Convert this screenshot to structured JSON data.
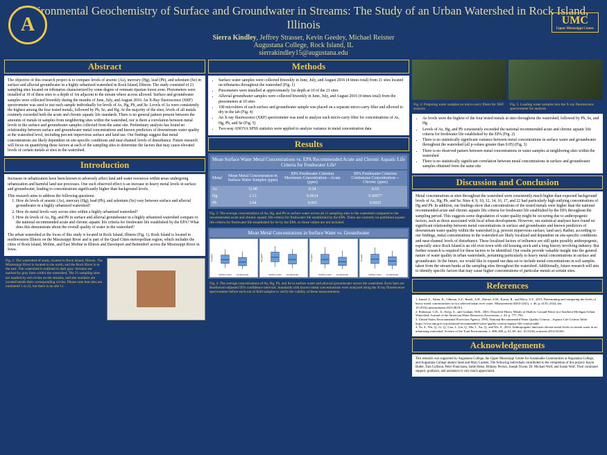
{
  "header": {
    "title": "Environmental Geochemistry of Surface and Groundwater in Streams:\nThe Study of an Urban Watershed in Rock Island, Illinois",
    "authors_lead": "Sierra Kindley",
    "authors_rest": ", Jeffrey Strasser, Kevin Geedey, Michael Reisner",
    "affiliation": "Augustana College, Rock Island, IL",
    "email": "sierrakindley15@augustana.edu",
    "logo_left_letter": "A",
    "logo_right": "UMC",
    "logo_right_sub": "Upper Mississippi Center"
  },
  "abstract": {
    "title": "Abstract",
    "body": "The objective of this research project is to compare levels of arsenic (As), mercury (Hg), lead (Pb), and selenium (Se) in surface and alluvial groundwater in a highly urbanized watershed in Rock Island, Illinois. The study consisted of 21 sampling sites located on tributaries characterized by some degree of remnant riparian forest zone. Piezometers were installed at 10 of these sites to a depth of 1m adjacent to the stream where access allowed. Surface and groundwater samples were collected biweekly during the months of June, July, and August 2016. An X-Ray fluorescence (XRF) spectrometer was used to test each sample individually for levels of As, Hg, Pb, and Se. Levels of As were consistently the highest among the four tested metals, followed by Pb, Se, and Hg. At the majority of the sites, levels of all metals routinely exceeded both the acute and chronic aquatic life standards. There is no general pattern present between the amounts of metals in samples from neighboring sites within the watershed, nor is there a correlation between metal levels in the surface and groundwater samples collected from the same site. Preliminary analysis has found no relationship between surface and groundwater metal concentrations and known predictors of downstream water quality at the watershed level, including percent impervious surface and land use. Our findings suggest that metal concentrations are likely dependent on site-specific conditions and near-channel levels of disturbance. Future research will focus on quantifying these factors at each of the sampling sites to determine the factors that may cause elevated levels of certain metals at sites in the watershed."
  },
  "introduction": {
    "title": "Introduction",
    "p1": "Increases in urbanization have been known to adversely affect land and water resources within areas undergoing urbanization and harmful land use processes. One such observed effect is an increase in heavy metal levels in surface and groundwater, leading to concentrations significantly higher than background levels.",
    "q_intro": "This research aims to address the following questions:",
    "q1": "How do levels of arsenic (As), mercury (Hg), lead (Pb), and selenium (Se) vary between surface and alluvial groundwater in a highly urbanized watershed?",
    "q2": "How do metal levels vary across sites within a highly urbanized watershed?",
    "q3": "How do levels of As, Hg, and Pb in surface and alluvial groundwater in a highly urbanized watershed compare to the national recommended acute and chronic aquatic life criteria for freshwater life established by the EPA? What does this demonstrate about the overall quality of water in the watershed?",
    "p2": "The urban watershed at the focus of this study is located in Rock Island, Illinois (Fig. 1). Rock Island is located in northwestern Illinois on the Mississippi River and is part of the Quad Cities metropolitan region, which includes the cities of Rock Island, Moline, and East Moline in Illinois and Davenport and Bettendorf across the Mississippi River in Iowa."
  },
  "fig1_caption": "Fig. 1: The watershed of study, located in Rock Island, Illinois. The Mississippi River is located to the north, and the Rock River is to the east. The watershed is outlined in dark gray. Streams are marked by gray lines within the watershed. The 21 sampling sites are marked by red circles on the streams, and site numbers are located beside their corresponding circles. Please note that sites are numbered 1 to 22, but there is no site 11.",
  "methods": {
    "title": "Methods",
    "m1": "Surface water samples were collected biweekly in June, July, and August 2016 (4 times total) from 21 sites located on tributaries throughout the watershed (Fig. 1)",
    "m2": "Piezometers were installed at approximately 1m depth at 10 of the 21 sites",
    "m3": "Alluvial groundwater samples were collected biweekly in June, July, and August 2016 (4 times total) from the piezometers at 10 sites",
    "m4": "100 microliters of each surface and groundwater sample was placed on a separate micro-carry filter and allowed to dry in the lab (Fig. 4)",
    "m5": "An X-ray fluorescence (XRF) spectrometer was used to analyze each micro-carry filter for concentrations of As, Hg, Pb, and Se (Fig. 5)",
    "m6": "Two-way ANOVA SPSS statistics were applied to analyze variance in metal concentration data"
  },
  "results_title": "Results",
  "table1": {
    "title": "Mean Surface Water Metal Concentrations vs. EPA Recommended Acute and Chronic Aquatic Life Criteria for Freshwater Life¹",
    "header_bg": "#6a86b6",
    "cell_bg": "#8aa0c6",
    "cols": [
      "Metal",
      "Mean Metal Concentration in Surface Water Samples (ppm)",
      "EPA Freshwater Criterion Maximum Concentration—Acute (ppm)",
      "EPA Freshwater Criterion Continuous Concentration—Chronic (ppm)"
    ],
    "rows": [
      [
        "As",
        "11.90",
        "0.34",
        "0.15"
      ],
      [
        "Hg",
        "2.13",
        "0.0014",
        "0.00077"
      ],
      [
        "Pb",
        "3.64",
        "0.065",
        "0.0025"
      ]
    ]
  },
  "fig2_caption": "Fig. 2: The average concentrations of As, Hg, and Pb in surface water across all 21 sampling sites in the watershed compared to the recommended acute and chronic aquatic life criteria for freshwater life established by the EPA. There are currently no published aquatic life criteria for freshwater life established for Se by the EPA, so those values are not included.",
  "table2_title": "Mean Metal Concentrations in Surface Water vs. Groundwater",
  "boxplots": {
    "chart_type": "boxplot",
    "charts": [
      {
        "metal": "As",
        "surface": {
          "median": 11,
          "q1": 8,
          "q3": 15,
          "lo": 4,
          "hi": 20
        },
        "ground": {
          "median": 9,
          "q1": 6,
          "q3": 13,
          "lo": 3,
          "hi": 18
        },
        "ymax": 25
      },
      {
        "metal": "Hg",
        "surface": {
          "median": 2.1,
          "q1": 1.5,
          "q3": 2.8,
          "lo": 0.8,
          "hi": 3.6
        },
        "ground": {
          "median": 1.8,
          "q1": 1.2,
          "q3": 2.5,
          "lo": 0.6,
          "hi": 3.2
        },
        "ymax": 4
      },
      {
        "metal": "Pb",
        "surface": {
          "median": 3.6,
          "q1": 2.4,
          "q3": 5.0,
          "lo": 1.2,
          "hi": 7.0
        },
        "ground": {
          "median": 3.0,
          "q1": 2.0,
          "q3": 4.2,
          "lo": 1.0,
          "hi": 6.0
        },
        "ymax": 8
      },
      {
        "metal": "Se",
        "surface": {
          "median": 3.2,
          "q1": 2.2,
          "q3": 4.4,
          "lo": 1.0,
          "hi": 6.0
        },
        "ground": {
          "median": 2.8,
          "q1": 1.8,
          "q3": 3.8,
          "lo": 0.8,
          "hi": 5.2
        },
        "ymax": 7
      }
    ],
    "box_fill": "#6a9edb",
    "box_stroke": "#1a3a6e",
    "plot_bg": "#ffffff",
    "xlabels": [
      "Surface water",
      "Groundwater"
    ],
    "ylabel_prefix": "Mean concentration of",
    "ylabel_suffix": "(ppm)"
  },
  "fig3_caption": "Fig. 3: The average concentrations of As, Hg, Pb, and Se in surface water and alluvial groundwater across the watershed. Error bars are Bonferroni-adjusted 95% confidence intervals. Standards with known metal concentrations were analyzed using the X-ray fluorescence spectrometer before each run of field samples to verify the validity of these measurements.",
  "fig4_caption": "Fig. 4: Preparing water samples on micro-carry filters for XRF analysis",
  "fig5_caption": "Fig. 5: Loading water samples into the X-ray fluorescence spectrometer for analysis",
  "results_bullets": {
    "b1": "As levels were the highest of the four tested metals at sites throughout the watershed, followed by Pb, Se, and Hg",
    "b2": "Levels of As, Hg, and Pb consistently exceeded the national recommended acute and chronic aquatic life criteria for freshwater life established by the EPA (Fig. 2)",
    "b3": "There is no statistically significant variance between metal concentrations in surface water and groundwater throughout the watershed (all p-values greater than 0.05) (Fig. 3)",
    "b4": "There is no observed pattern between metal concentrations in water samples at neighboring sites within the watershed",
    "b5": "There is no statistically significant correlation between metal concentrations in surface and groundwater samples obtained from the same site"
  },
  "discussion": {
    "title": "Discussion and Conclusion",
    "body": "Metal concentrations at sites throughout the watershed were consistently much higher than expected background levels of As, Hg, Pb, and Se. Sites 4, 9, 10, 12, 14, 16, 17, and 22 had particularly high outlying concentrations of Hg and Pb. In addition, our findings show that concentrations of the tested metals were higher than the national recommended acute and chronic aquatic life criteria for freshwater life established by the EPA throughout the sampling period. This suggests some degradation of water quality might be occurring due to anthropogenic factors, such as those associated with local urban development. However, our statistical analyses have found no significant relationship between metal concentrations in surface and groundwater and known predictors of downstream water quality within the watershed (e.g. percent impervious surface, land use). Rather, according to our findings, metal concentrations in the watershed are likely localized and dependent on site-specific conditions and near-channel levels of disturbance. These localized factors of influence are still quite possibly anthropogenic, especially since Rock Island is an old river town with old housing stock and a long history involving industry. But further research is required for these factors to be identified. Our results provide valuable insight into the general nature of water quality in urban watersheds, pertaining particularly to heavy metal concentrations in surface and groundwater. In the future, we would like to expand our data set to include metal concentrations in soil samples taken from the stream banks at the sampling sites throughout the watershed. Additionally, future research will aim to identify specific factors that may cause higher concentrations of particular metals at certain sites."
  },
  "references": {
    "title": "References",
    "r1": "1. Ismail, Z., Salim, K., Othman, S.Z., Ramli, A.H., Shirazi, S.M., Karim, R., and Khoo, S.Y., 2013, Determining and comparing the levels of heavy metal concentrations in two selected urban river water: Measurement (0263-2241), v. 46, p. 4135–4144, doi: 10.1016/j.measurement.2013.08.013.",
    "r2": "2. Robinson, G.R., Jr., Keep, S., and Graham, M.R., 2001, Dissolved Heavy Metals in Shallow Ground Water in a Southern Michigan Urban Watershed: Journal of the American Water Resources Association, v. 42, p. 777–792.",
    "r3": "3. United States Environmental Protection Agency, 1995, National Recommended Water Quality Criteria – Aquatic Life Criteria Table: https://www.epa.gov/wqc/national-recommended-water-quality-criteria-aquatic-life-criteria-table",
    "r4": "4. Yu, S., Wu, Q., Li, Q., Gao, J., Lin, Q., Ma, J., Xu, Q., and Wu, S., 2014, Anthropogenic land uses elevate metal levels in stream water in an urbanizing watershed: Science of the Total Environment, v. 488–489, p. 61–69, doi: 10.1016/j.scitotenv.2014.04.061."
  },
  "ack": {
    "title": "Acknowledgements",
    "body": "This research was supported by Augustana College, the Upper Mississippi Center for Sustainable Communities at Augustana College, and Augustana College alumni Janet and Mary Lueken. The following individuals contributed to the completion of this project: Kayla Butler, Tara Collison, Peter Francissen, Sadie Heise, Brittany Peyton, Joseph Towne, Dr. Michael Wolf, and Susan Wolf. Their continued support, guidance, and assistance is very much appreciated."
  },
  "colors": {
    "poster_bg": "#1a3a6e",
    "accent": "#f2c744",
    "title_text": "#e8d898",
    "panel_bg": "#ffffff",
    "table_header": "#6a86b6",
    "table_cell": "#8aa0c6"
  }
}
